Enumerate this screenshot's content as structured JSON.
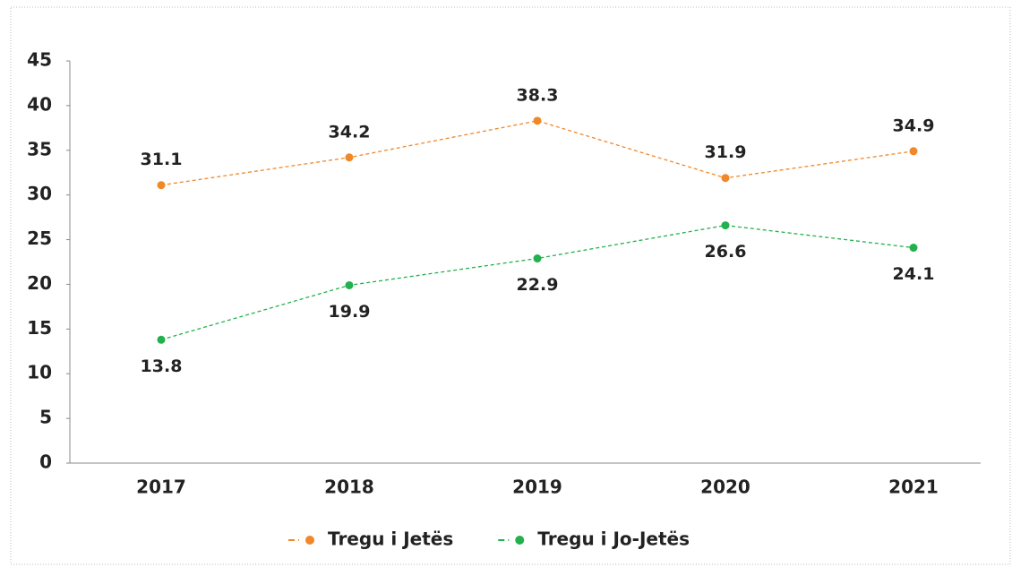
{
  "chart_data": {
    "type": "line",
    "categories": [
      "2017",
      "2018",
      "2019",
      "2020",
      "2021"
    ],
    "series": [
      {
        "name": "Tregu i Jetës",
        "color": "#f0882a",
        "values": [
          31.1,
          34.2,
          38.3,
          31.9,
          34.9
        ]
      },
      {
        "name": "Tregu i Jo-Jetës",
        "color": "#22b14c",
        "values": [
          13.8,
          19.9,
          22.9,
          26.6,
          24.1
        ]
      }
    ],
    "ylim": [
      0,
      45
    ],
    "yticks": [
      0,
      5,
      10,
      15,
      20,
      25,
      30,
      35,
      40,
      45
    ],
    "legend": "bottom"
  }
}
